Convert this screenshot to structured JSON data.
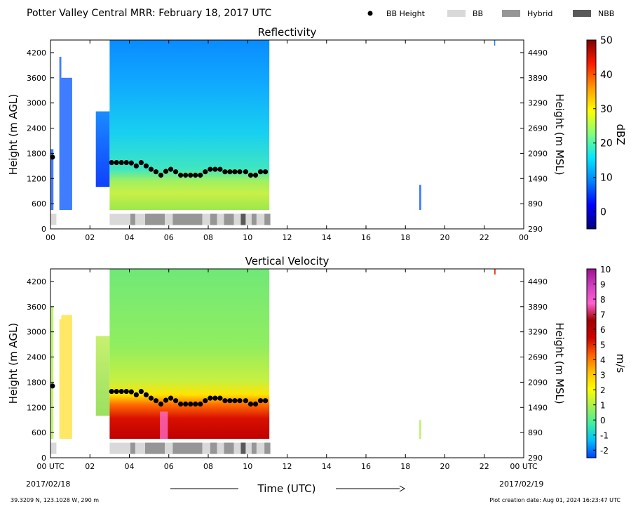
{
  "header": {
    "title": "Potter Valley Central MRR:  February 18, 2017 UTC",
    "legend": [
      {
        "label": "BB Height",
        "kind": "dot",
        "color": "#000000"
      },
      {
        "label": "BB",
        "kind": "box",
        "color": "#d9d9d9"
      },
      {
        "label": "Hybrid",
        "kind": "box",
        "color": "#969696"
      },
      {
        "label": "NBB",
        "kind": "box",
        "color": "#595959"
      }
    ]
  },
  "footer": {
    "location": "39.3209 N, 123.1028 W, 290 m",
    "creation": "Plot creation date: Aug 01, 2024 16:23:47 UTC",
    "time_label": "Time (UTC)",
    "start_date": "2017/02/18",
    "end_date": "2017/02/19"
  },
  "chart_data": [
    {
      "type": "heatmap",
      "title": "Reflectivity",
      "ylabel": "Height (m AGL)",
      "ylabel_right": "Height (m MSL)",
      "xlim": [
        0,
        24
      ],
      "ylim": [
        0,
        4500
      ],
      "x_ticks": [
        "00",
        "02",
        "04",
        "06",
        "08",
        "10",
        "12",
        "14",
        "16",
        "18",
        "20",
        "22",
        "00"
      ],
      "y_ticks": [
        "0",
        "600",
        "1200",
        "1800",
        "2400",
        "3000",
        "3600",
        "4200"
      ],
      "y_ticks_right": [
        "290",
        "890",
        "1490",
        "2090",
        "2690",
        "3290",
        "3890",
        "4490"
      ],
      "colorbar": {
        "label": "dBZ",
        "range": [
          -5,
          50
        ],
        "ticks": [
          "0",
          "10",
          "20",
          "30",
          "40",
          "50"
        ],
        "colors": [
          "#00007f",
          "#0000ff",
          "#0080ff",
          "#00e5ff",
          "#7fff7f",
          "#ffff00",
          "#ff9900",
          "#ff1a00",
          "#7f0000"
        ]
      },
      "field_segments": [
        {
          "x": [
            0.0,
            0.15
          ],
          "top": 1900,
          "kind": "sparse"
        },
        {
          "x": [
            0.45,
            0.55
          ],
          "top": 4100,
          "kind": "sparse"
        },
        {
          "x": [
            0.55,
            1.1
          ],
          "top": 3600,
          "kind": "sparse"
        },
        {
          "x": [
            2.3,
            3.0
          ],
          "top": 2800,
          "kind": "edge"
        },
        {
          "x": [
            3.0,
            11.1
          ],
          "top": 4500,
          "kind": "main"
        },
        {
          "x": [
            18.7,
            18.8
          ],
          "top": 1050,
          "kind": "sparse"
        }
      ],
      "bb_height": {
        "x": [
          0.1,
          3.1,
          3.35,
          3.6,
          3.85,
          4.1,
          4.35,
          4.6,
          4.85,
          5.1,
          5.35,
          5.6,
          5.85,
          6.1,
          6.35,
          6.6,
          6.85,
          7.1,
          7.35,
          7.6,
          7.85,
          8.1,
          8.35,
          8.6,
          8.85,
          9.1,
          9.35,
          9.6,
          9.9,
          10.15,
          10.4,
          10.65,
          10.9
        ],
        "y": [
          1710,
          1580,
          1580,
          1580,
          1580,
          1570,
          1500,
          1580,
          1500,
          1420,
          1360,
          1280,
          1370,
          1420,
          1360,
          1280,
          1280,
          1280,
          1280,
          1280,
          1360,
          1420,
          1420,
          1420,
          1360,
          1360,
          1360,
          1360,
          1360,
          1280,
          1280,
          1360,
          1360
        ]
      },
      "bb_type": [
        {
          "x": [
            0.0,
            0.3
          ],
          "type": "BB"
        },
        {
          "x": [
            3.0,
            4.05
          ],
          "type": "BB"
        },
        {
          "x": [
            4.05,
            4.3
          ],
          "type": "Hybrid"
        },
        {
          "x": [
            4.3,
            4.8
          ],
          "type": "BB"
        },
        {
          "x": [
            4.8,
            5.8
          ],
          "type": "Hybrid"
        },
        {
          "x": [
            5.8,
            6.2
          ],
          "type": "BB"
        },
        {
          "x": [
            6.2,
            7.7
          ],
          "type": "Hybrid"
        },
        {
          "x": [
            7.7,
            8.1
          ],
          "type": "BB"
        },
        {
          "x": [
            8.1,
            8.45
          ],
          "type": "Hybrid"
        },
        {
          "x": [
            8.45,
            8.8
          ],
          "type": "BB"
        },
        {
          "x": [
            8.8,
            9.3
          ],
          "type": "Hybrid"
        },
        {
          "x": [
            9.3,
            9.65
          ],
          "type": "BB"
        },
        {
          "x": [
            9.65,
            9.9
          ],
          "type": "NBB"
        },
        {
          "x": [
            9.9,
            10.2
          ],
          "type": "BB"
        },
        {
          "x": [
            10.2,
            10.45
          ],
          "type": "Hybrid"
        },
        {
          "x": [
            10.45,
            10.85
          ],
          "type": "BB"
        },
        {
          "x": [
            10.85,
            11.15
          ],
          "type": "Hybrid"
        }
      ]
    },
    {
      "type": "heatmap",
      "title": "Vertical Velocity",
      "ylabel": "Height (m AGL)",
      "ylabel_right": "Height (m MSL)",
      "xlim": [
        0,
        24
      ],
      "ylim": [
        0,
        4500
      ],
      "x_ticks": [
        "00 UTC",
        "02",
        "04",
        "06",
        "08",
        "10",
        "12",
        "14",
        "16",
        "18",
        "20",
        "22",
        "00 UTC"
      ],
      "y_ticks": [
        "0",
        "600",
        "1200",
        "1800",
        "2400",
        "3000",
        "3600",
        "4200"
      ],
      "y_ticks_right": [
        "290",
        "890",
        "1490",
        "2090",
        "2690",
        "3290",
        "3890",
        "4490"
      ],
      "colorbar": {
        "label": "m/s",
        "range": [
          -2.5,
          10
        ],
        "ticks": [
          "-2",
          "-1",
          "0",
          "1",
          "2",
          "3",
          "4",
          "5",
          "6",
          "7",
          "8",
          "9",
          "10"
        ],
        "colors": [
          "#0040ff",
          "#00bfff",
          "#40f0a0",
          "#a6f050",
          "#ffff00",
          "#ffbf00",
          "#ff6000",
          "#d00000",
          "#a00000",
          "#ff60d0",
          "#d040c0",
          "#a01090"
        ]
      },
      "field_segments": [
        {
          "x": [
            0.0,
            0.15
          ],
          "top": 3600,
          "kind": "sparse"
        },
        {
          "x": [
            0.45,
            0.55
          ],
          "top": 3300,
          "kind": "sparse"
        },
        {
          "x": [
            0.55,
            1.1
          ],
          "top": 3400,
          "kind": "sparse"
        },
        {
          "x": [
            2.3,
            3.0
          ],
          "top": 2900,
          "kind": "edge"
        },
        {
          "x": [
            3.0,
            11.1
          ],
          "top": 4500,
          "kind": "main"
        },
        {
          "x": [
            18.7,
            18.8
          ],
          "top": 900,
          "kind": "sparse"
        }
      ],
      "bb_height": {
        "x": [
          0.1,
          3.1,
          3.35,
          3.6,
          3.85,
          4.1,
          4.35,
          4.6,
          4.85,
          5.1,
          5.35,
          5.6,
          5.85,
          6.1,
          6.35,
          6.6,
          6.85,
          7.1,
          7.35,
          7.6,
          7.85,
          8.1,
          8.35,
          8.6,
          8.85,
          9.1,
          9.35,
          9.6,
          9.9,
          10.15,
          10.4,
          10.65,
          10.9
        ],
        "y": [
          1710,
          1580,
          1580,
          1580,
          1580,
          1570,
          1500,
          1580,
          1500,
          1420,
          1360,
          1280,
          1370,
          1420,
          1360,
          1280,
          1280,
          1280,
          1280,
          1280,
          1360,
          1420,
          1420,
          1420,
          1360,
          1360,
          1360,
          1360,
          1360,
          1280,
          1280,
          1360,
          1360
        ]
      },
      "bb_type": [
        {
          "x": [
            0.0,
            0.3
          ],
          "type": "BB"
        },
        {
          "x": [
            3.0,
            4.05
          ],
          "type": "BB"
        },
        {
          "x": [
            4.05,
            4.3
          ],
          "type": "Hybrid"
        },
        {
          "x": [
            4.3,
            4.8
          ],
          "type": "BB"
        },
        {
          "x": [
            4.8,
            5.8
          ],
          "type": "Hybrid"
        },
        {
          "x": [
            5.8,
            6.2
          ],
          "type": "BB"
        },
        {
          "x": [
            6.2,
            7.7
          ],
          "type": "Hybrid"
        },
        {
          "x": [
            7.7,
            8.1
          ],
          "type": "BB"
        },
        {
          "x": [
            8.1,
            8.45
          ],
          "type": "Hybrid"
        },
        {
          "x": [
            8.45,
            8.8
          ],
          "type": "BB"
        },
        {
          "x": [
            8.8,
            9.3
          ],
          "type": "Hybrid"
        },
        {
          "x": [
            9.3,
            9.65
          ],
          "type": "BB"
        },
        {
          "x": [
            9.65,
            9.9
          ],
          "type": "NBB"
        },
        {
          "x": [
            9.9,
            10.2
          ],
          "type": "BB"
        },
        {
          "x": [
            10.2,
            10.45
          ],
          "type": "Hybrid"
        },
        {
          "x": [
            10.45,
            10.85
          ],
          "type": "BB"
        },
        {
          "x": [
            10.85,
            11.15
          ],
          "type": "Hybrid"
        }
      ]
    }
  ]
}
